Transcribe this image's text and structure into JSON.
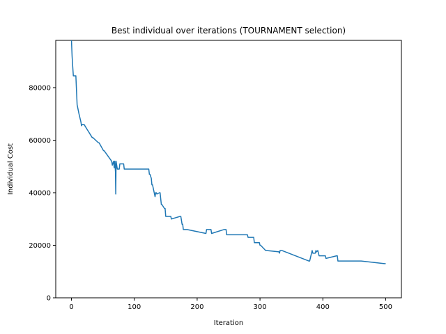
{
  "chart_data": {
    "type": "line",
    "title": "Best individual over iterations (TOURNAMENT selection)",
    "xlabel": "Iteration",
    "ylabel": "Individual Cost",
    "xlim": [
      -25,
      525
    ],
    "ylim": [
      0,
      98000
    ],
    "xticks": [
      0,
      100,
      200,
      300,
      400,
      500
    ],
    "yticks": [
      0,
      20000,
      40000,
      60000,
      80000
    ],
    "grid": false,
    "line_color": "#1f77b4",
    "series": [
      {
        "x": [
          0,
          1,
          2,
          3,
          7,
          8,
          9,
          12,
          13,
          15,
          16,
          17,
          18,
          20,
          33,
          34,
          43,
          44,
          51,
          52,
          64,
          65,
          67,
          68,
          69,
          70,
          70.5,
          71,
          72,
          73,
          76,
          77,
          78,
          83,
          84,
          85,
          123,
          124,
          125,
          127,
          128,
          129,
          133,
          134,
          135,
          136,
          140,
          141,
          143,
          144,
          148,
          149,
          150,
          151,
          158,
          159,
          173,
          174,
          176,
          177,
          178,
          183,
          184,
          214,
          215,
          222,
          223,
          243,
          244,
          246,
          247,
          280,
          281,
          290,
          291,
          299,
          300,
          301,
          309,
          310,
          330,
          331,
          332,
          333,
          334,
          335,
          378,
          379,
          383,
          384,
          388,
          389,
          390,
          392,
          394,
          395,
          404,
          405,
          422,
          423,
          424,
          460,
          461,
          498,
          500
        ],
        "y": [
          98000,
          92000,
          88000,
          84500,
          84500,
          79000,
          73500,
          70000,
          69000,
          67000,
          65500,
          66000,
          66000,
          66000,
          61000,
          61000,
          59000,
          59000,
          56000,
          56000,
          52000,
          50500,
          52000,
          49500,
          52000,
          48000,
          39500,
          52000,
          50500,
          49000,
          49000,
          51000,
          51000,
          51000,
          49000,
          49000,
          49000,
          47000,
          47000,
          45500,
          43000,
          43000,
          38500,
          40000,
          40000,
          39500,
          40000,
          40000,
          35500,
          35500,
          34000,
          34000,
          31000,
          31000,
          31000,
          30000,
          31000,
          31000,
          28000,
          28000,
          26000,
          26000,
          26000,
          24500,
          26000,
          26000,
          24500,
          26000,
          26000,
          26000,
          24000,
          24000,
          23000,
          23000,
          21000,
          21000,
          20000,
          20000,
          18000,
          18000,
          17500,
          17000,
          18000,
          18000,
          18000,
          18000,
          14000,
          14000,
          18000,
          17000,
          17000,
          18000,
          17500,
          18000,
          16000,
          16000,
          16000,
          15000,
          16000,
          16000,
          14000,
          14000,
          14000,
          13000,
          13000
        ]
      }
    ]
  }
}
